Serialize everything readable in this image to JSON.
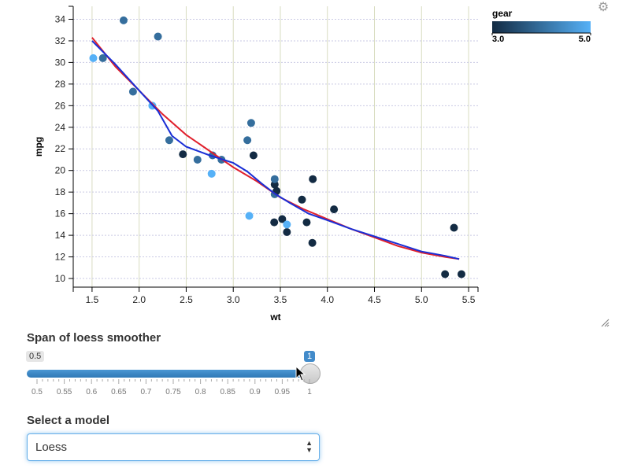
{
  "chart_data": {
    "type": "scatter",
    "xlabel": "wt",
    "ylabel": "mpg",
    "xlim": [
      1.3,
      5.6
    ],
    "ylim": [
      9.2,
      35.2
    ],
    "xticks": [
      1.5,
      2.0,
      2.5,
      3.0,
      3.5,
      4.0,
      4.5,
      5.0,
      5.5
    ],
    "xtick_labels": [
      "1.5",
      "2.0",
      "2.5",
      "3.0",
      "3.5",
      "4.0",
      "4.5",
      "5.0",
      "5.5"
    ],
    "yticks": [
      10,
      12,
      14,
      16,
      18,
      20,
      22,
      24,
      26,
      28,
      30,
      32,
      34
    ],
    "ytick_labels": [
      "10",
      "12",
      "14",
      "16",
      "18",
      "20",
      "22",
      "24",
      "26",
      "28",
      "30",
      "32",
      "34"
    ],
    "grid": true,
    "legend": {
      "title": "gear",
      "placement": "top-right",
      "min_label": "3.0",
      "max_label": "5.0",
      "min_value": 3,
      "max_value": 5,
      "low_color": "#132b43",
      "high_color": "#56b1f7"
    },
    "points": [
      {
        "x": 1.513,
        "y": 30.4,
        "gear": 5
      },
      {
        "x": 1.615,
        "y": 30.4,
        "gear": 4
      },
      {
        "x": 1.835,
        "y": 33.9,
        "gear": 4
      },
      {
        "x": 1.935,
        "y": 27.3,
        "gear": 4
      },
      {
        "x": 2.14,
        "y": 26.0,
        "gear": 5
      },
      {
        "x": 2.2,
        "y": 32.4,
        "gear": 4
      },
      {
        "x": 2.32,
        "y": 22.8,
        "gear": 4
      },
      {
        "x": 2.465,
        "y": 21.5,
        "gear": 3
      },
      {
        "x": 2.62,
        "y": 21.0,
        "gear": 4
      },
      {
        "x": 2.77,
        "y": 19.7,
        "gear": 5
      },
      {
        "x": 2.78,
        "y": 21.4,
        "gear": 4
      },
      {
        "x": 2.875,
        "y": 21.0,
        "gear": 4
      },
      {
        "x": 3.15,
        "y": 22.8,
        "gear": 4
      },
      {
        "x": 3.17,
        "y": 15.8,
        "gear": 5
      },
      {
        "x": 3.19,
        "y": 24.4,
        "gear": 4
      },
      {
        "x": 3.215,
        "y": 21.4,
        "gear": 3
      },
      {
        "x": 3.435,
        "y": 15.2,
        "gear": 3
      },
      {
        "x": 3.44,
        "y": 18.7,
        "gear": 3
      },
      {
        "x": 3.44,
        "y": 19.2,
        "gear": 4
      },
      {
        "x": 3.44,
        "y": 17.8,
        "gear": 4
      },
      {
        "x": 3.46,
        "y": 18.1,
        "gear": 3
      },
      {
        "x": 3.52,
        "y": 15.5,
        "gear": 3
      },
      {
        "x": 3.57,
        "y": 14.3,
        "gear": 3
      },
      {
        "x": 3.57,
        "y": 15.0,
        "gear": 5
      },
      {
        "x": 3.73,
        "y": 17.3,
        "gear": 3
      },
      {
        "x": 3.78,
        "y": 15.2,
        "gear": 3
      },
      {
        "x": 3.84,
        "y": 13.3,
        "gear": 3
      },
      {
        "x": 3.845,
        "y": 19.2,
        "gear": 3
      },
      {
        "x": 4.07,
        "y": 16.4,
        "gear": 3
      },
      {
        "x": 5.25,
        "y": 10.4,
        "gear": 3
      },
      {
        "x": 5.345,
        "y": 14.7,
        "gear": 3
      },
      {
        "x": 5.424,
        "y": 10.4,
        "gear": 3
      }
    ],
    "lines": [
      {
        "color": "#e0202c",
        "points": [
          [
            1.5,
            32.3
          ],
          [
            1.75,
            29.6
          ],
          [
            2.0,
            27.4
          ],
          [
            2.25,
            25.2
          ],
          [
            2.5,
            23.3
          ],
          [
            2.75,
            21.8
          ],
          [
            3.0,
            20.3
          ],
          [
            3.25,
            19.0
          ],
          [
            3.5,
            17.5
          ],
          [
            3.75,
            16.4
          ],
          [
            4.0,
            15.5
          ],
          [
            4.25,
            14.6
          ],
          [
            4.5,
            13.8
          ],
          [
            4.75,
            13.0
          ],
          [
            5.0,
            12.4
          ],
          [
            5.25,
            12.0
          ],
          [
            5.4,
            11.8
          ]
        ]
      },
      {
        "color": "#1a2fd6",
        "points": [
          [
            1.5,
            32.0
          ],
          [
            1.75,
            29.8
          ],
          [
            2.0,
            27.4
          ],
          [
            2.2,
            25.5
          ],
          [
            2.35,
            23.2
          ],
          [
            2.5,
            22.2
          ],
          [
            2.75,
            21.4
          ],
          [
            3.0,
            20.7
          ],
          [
            3.15,
            19.9
          ],
          [
            3.3,
            18.8
          ],
          [
            3.45,
            17.8
          ],
          [
            3.6,
            17.0
          ],
          [
            3.8,
            16.0
          ],
          [
            4.0,
            15.4
          ],
          [
            4.25,
            14.6
          ],
          [
            4.5,
            13.9
          ],
          [
            4.75,
            13.2
          ],
          [
            5.0,
            12.5
          ],
          [
            5.25,
            12.1
          ],
          [
            5.4,
            11.8
          ]
        ]
      }
    ]
  },
  "controls": {
    "gear_icon": "gear-icon",
    "span_label": "Span of loess smoother",
    "slider": {
      "min_label": "0.5",
      "value_label": "1",
      "value": 1,
      "min": 0.5,
      "max": 1,
      "grid_labels": [
        "0.5",
        "0.55",
        "0.6",
        "0.65",
        "0.7",
        "0.75",
        "0.8",
        "0.85",
        "0.9",
        "0.95",
        "1"
      ]
    },
    "model_label": "Select a model",
    "model_selected": "Loess"
  }
}
